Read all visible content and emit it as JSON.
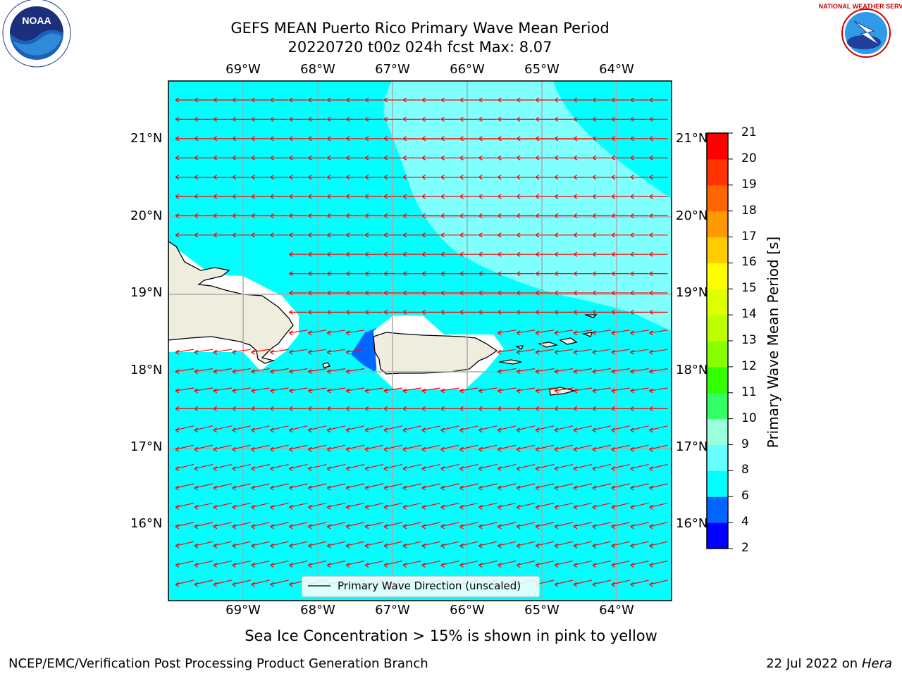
{
  "title": {
    "line1": "GEFS MEAN Puerto Rico Primary Wave Mean Period",
    "line2": "20220720 t00z 024h fcst   Max: 8.07"
  },
  "map": {
    "lon_labels": [
      "69°W",
      "68°W",
      "67°W",
      "66°W",
      "65°W",
      "64°W"
    ],
    "lat_labels": [
      "21°N",
      "20°N",
      "19°N",
      "18°N",
      "17°N",
      "16°N"
    ],
    "ocean_color": "#00ffff",
    "swell_color": "#80ffff",
    "land_color": "#efedde",
    "arrow_color": "#ff0000",
    "legend": {
      "label": "Primary Wave Direction (unscaled)"
    }
  },
  "colorbar": {
    "label": "Primary Wave Mean Period [s]",
    "ticks": [
      "21",
      "20",
      "19",
      "18",
      "17",
      "16",
      "15",
      "14",
      "13",
      "12",
      "11",
      "10",
      "9",
      "8",
      "6",
      "4",
      "2"
    ],
    "colors": [
      "#0000ff",
      "#0066ff",
      "#00ffff",
      "#66ffff",
      "#99ffdd",
      "#33ff66",
      "#33ff00",
      "#88ff00",
      "#bbff00",
      "#ddff00",
      "#ffff00",
      "#ffcc00",
      "#ff9900",
      "#ff6600",
      "#ff3300",
      "#ff0000"
    ]
  },
  "note": "Sea Ice Concentration > 15% is shown in pink to yellow",
  "footer": {
    "left": "NCEP/EMC/Verification Post Processing Product Generation Branch",
    "right_prefix": "22 Jul 2022 on ",
    "right_host": "Hera"
  },
  "logos": {
    "noaa": "NOAA",
    "nws": "NATIONAL WEATHER SERVICE"
  }
}
